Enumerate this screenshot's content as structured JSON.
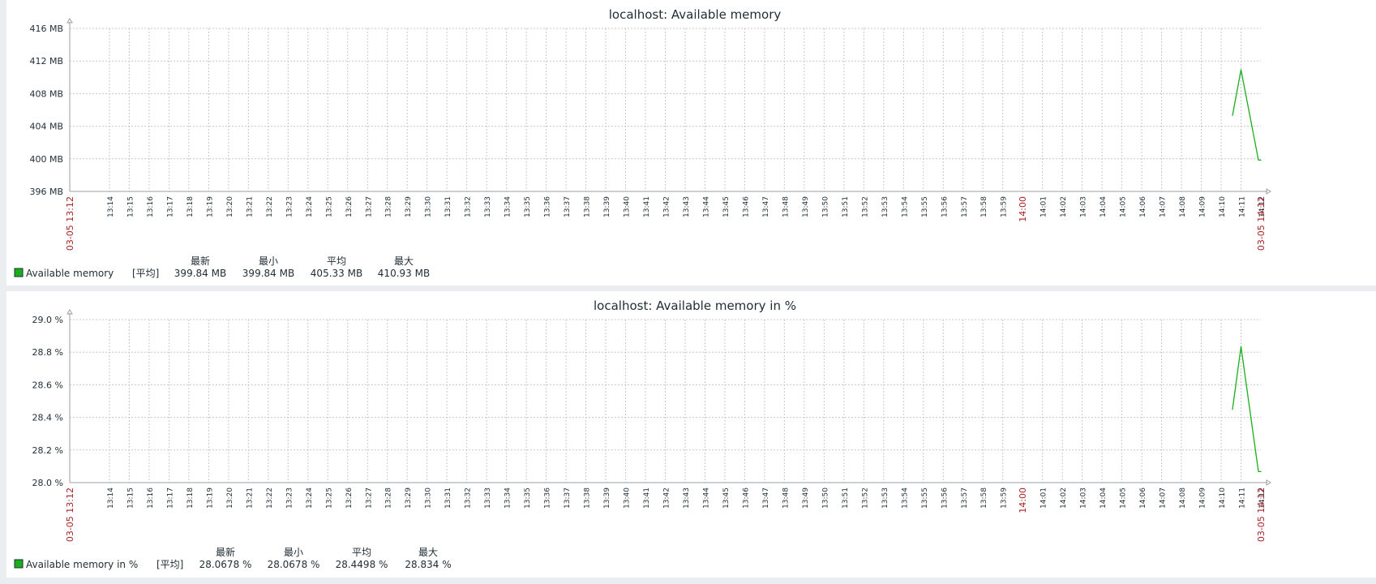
{
  "colors": {
    "series": "#1aaf1a",
    "grid": "#c8c8c8",
    "axis": "#9aa0a4",
    "accent_red": "#a82323"
  },
  "chart_data": [
    {
      "type": "line",
      "title": "localhost: Available memory",
      "y_ticks": [
        "416 MB",
        "412 MB",
        "408 MB",
        "404 MB",
        "400 MB",
        "396 MB"
      ],
      "ylim": [
        396,
        416
      ],
      "x_start_label": "03-05 13:12",
      "x_end_label": "03-05 14:12",
      "x_minute_ticks": [
        "13:14",
        "13:15",
        "13:16",
        "13:17",
        "13:18",
        "13:19",
        "13:20",
        "13:21",
        "13:22",
        "13:23",
        "13:24",
        "13:25",
        "13:26",
        "13:27",
        "13:28",
        "13:29",
        "13:30",
        "13:31",
        "13:32",
        "13:33",
        "13:34",
        "13:35",
        "13:36",
        "13:37",
        "13:38",
        "13:39",
        "13:40",
        "13:41",
        "13:42",
        "13:43",
        "13:44",
        "13:45",
        "13:46",
        "13:47",
        "13:48",
        "13:49",
        "13:50",
        "13:51",
        "13:52",
        "13:53",
        "13:54",
        "13:55",
        "13:56",
        "13:57",
        "13:58",
        "13:59",
        "14:00",
        "14:01",
        "14:02",
        "14:03",
        "14:04",
        "14:05",
        "14:06",
        "14:07",
        "14:08",
        "14:09",
        "14:10",
        "14:11",
        "14:12"
      ],
      "x_highlight_tick": "14:00",
      "grid": true,
      "series": [
        {
          "name": "Available memory",
          "x": [
            "14:10",
            "14:11",
            "14:12",
            "14:12"
          ],
          "values": [
            405.33,
            410.93,
            399.84,
            399.84
          ]
        }
      ],
      "legend": {
        "series_name": "Available memory",
        "func_label": "[平均]",
        "stat_headers": [
          "最新",
          "最小",
          "平均",
          "最大"
        ],
        "stat_values": [
          "399.84 MB",
          "399.84 MB",
          "405.33 MB",
          "410.93 MB"
        ]
      }
    },
    {
      "type": "line",
      "title": "localhost: Available memory in %",
      "y_ticks": [
        "29.0 %",
        "28.8 %",
        "28.6 %",
        "28.4 %",
        "28.2 %",
        "28.0 %"
      ],
      "ylim": [
        28.0,
        29.0
      ],
      "x_start_label": "03-05 13:12",
      "x_end_label": "03-05 14:12",
      "x_minute_ticks": [
        "13:14",
        "13:15",
        "13:16",
        "13:17",
        "13:18",
        "13:19",
        "13:20",
        "13:21",
        "13:22",
        "13:23",
        "13:24",
        "13:25",
        "13:26",
        "13:27",
        "13:28",
        "13:29",
        "13:30",
        "13:31",
        "13:32",
        "13:33",
        "13:34",
        "13:35",
        "13:36",
        "13:37",
        "13:38",
        "13:39",
        "13:40",
        "13:41",
        "13:42",
        "13:43",
        "13:44",
        "13:45",
        "13:46",
        "13:47",
        "13:48",
        "13:49",
        "13:50",
        "13:51",
        "13:52",
        "13:53",
        "13:54",
        "13:55",
        "13:56",
        "13:57",
        "13:58",
        "13:59",
        "14:00",
        "14:01",
        "14:02",
        "14:03",
        "14:04",
        "14:05",
        "14:06",
        "14:07",
        "14:08",
        "14:09",
        "14:10",
        "14:11",
        "14:12"
      ],
      "x_highlight_tick": "14:00",
      "grid": true,
      "series": [
        {
          "name": "Available memory in %",
          "x": [
            "14:10",
            "14:11",
            "14:12",
            "14:12"
          ],
          "values": [
            28.4498,
            28.834,
            28.0678,
            28.0678
          ]
        }
      ],
      "legend": {
        "series_name": "Available memory in %",
        "func_label": "[平均]",
        "stat_headers": [
          "最新",
          "最小",
          "平均",
          "最大"
        ],
        "stat_values": [
          "28.0678 %",
          "28.0678 %",
          "28.4498 %",
          "28.834 %"
        ]
      }
    }
  ]
}
